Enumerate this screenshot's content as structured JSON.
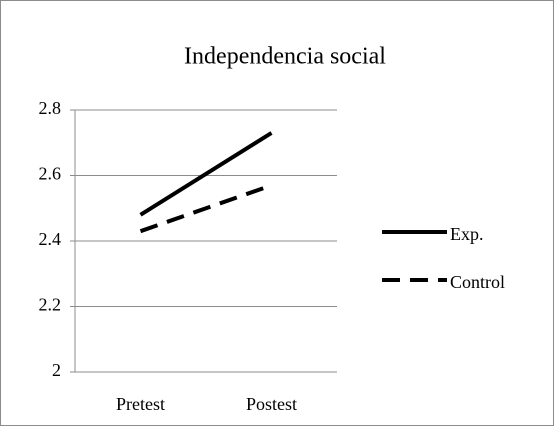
{
  "chart_data": {
    "type": "line",
    "title": "Independencia social",
    "categories": [
      "Pretest",
      "Postest"
    ],
    "series": [
      {
        "name": "Exp.",
        "color": "#000000",
        "style": "solid",
        "values": [
          2.48,
          2.73
        ]
      },
      {
        "name": "Control",
        "color": "#000000",
        "style": "dashed",
        "values": [
          2.43,
          2.57
        ]
      }
    ],
    "ylim": [
      2,
      2.8
    ],
    "yticks": [
      2,
      2.2,
      2.4,
      2.6,
      2.8
    ],
    "grid": true,
    "legend": "right"
  }
}
